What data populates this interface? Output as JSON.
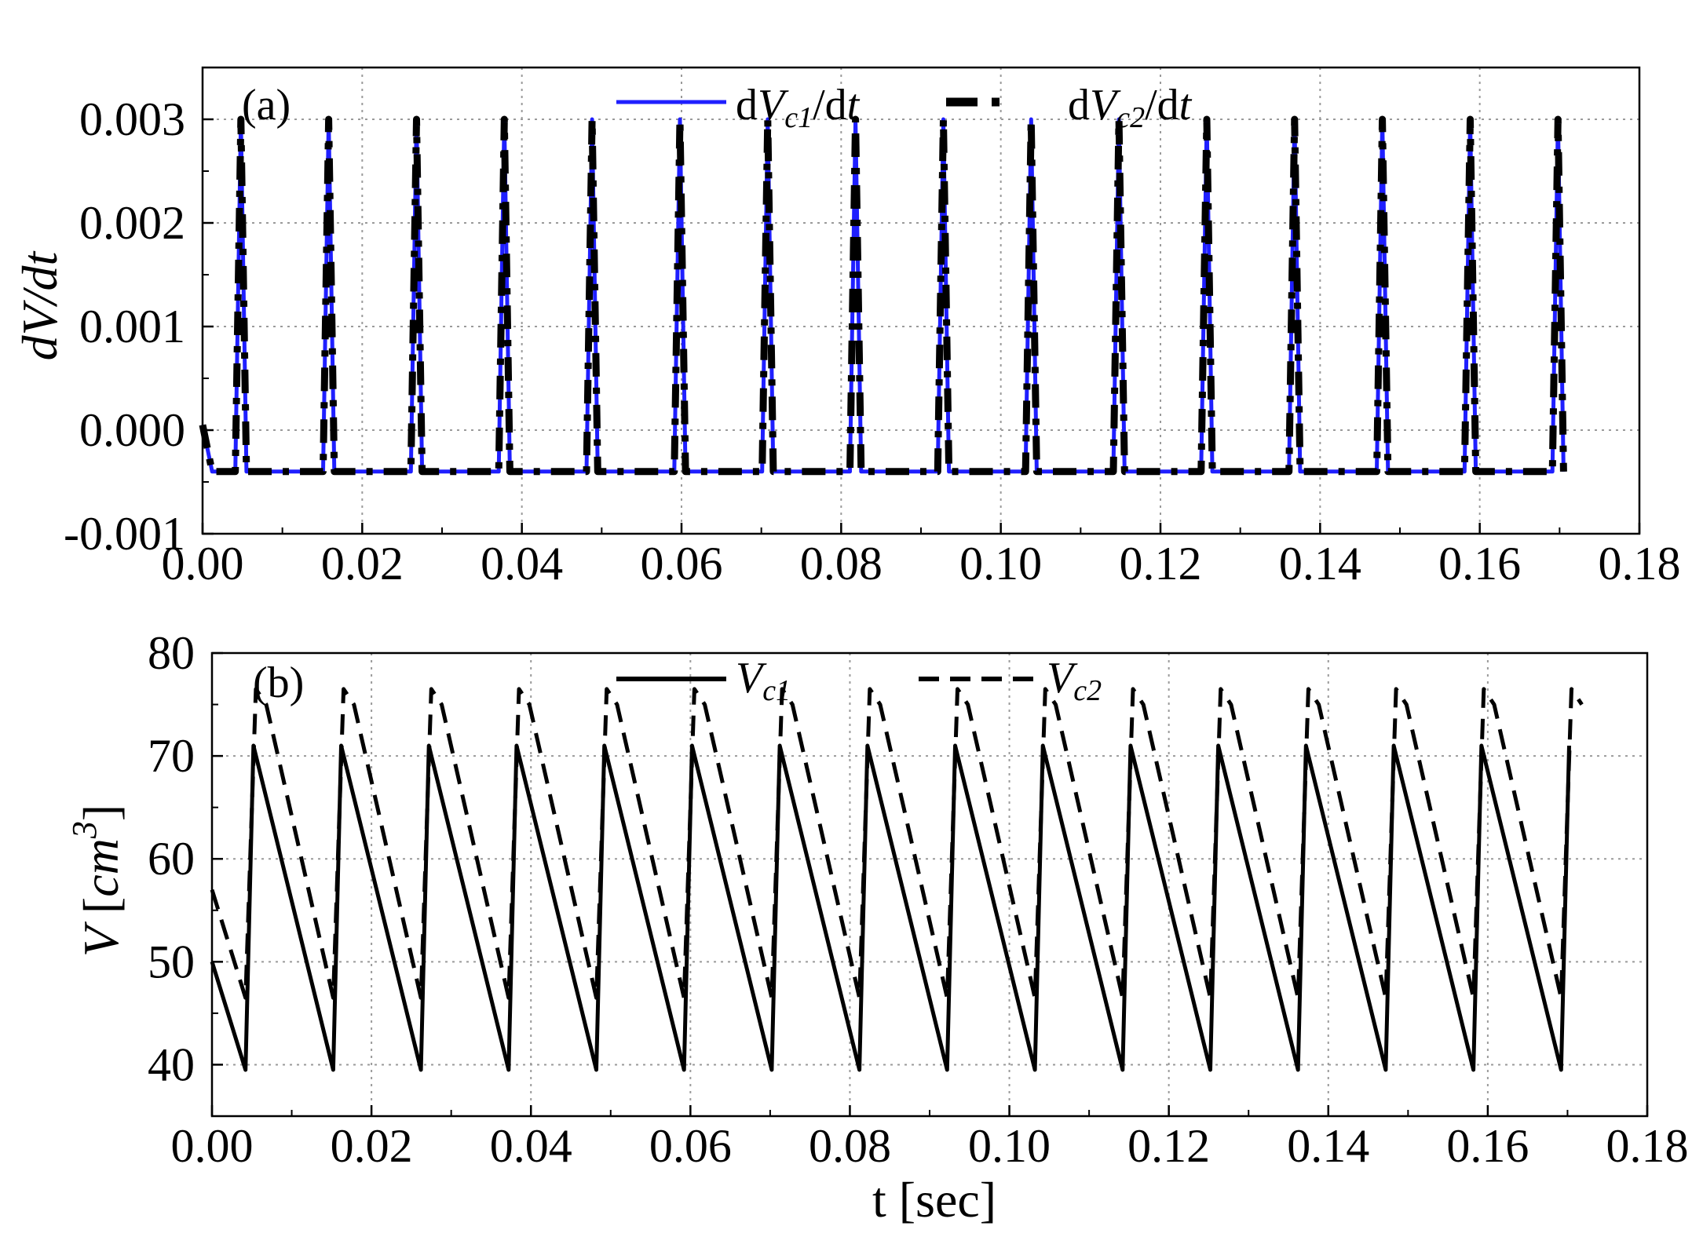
{
  "chart_data": [
    {
      "type": "line",
      "panel_label": "(a)",
      "title": "",
      "xlabel": "",
      "ylabel": "dV/dt",
      "xlim": [
        0,
        0.18
      ],
      "ylim": [
        -0.001,
        0.0035
      ],
      "x_ticks": [
        "0.00",
        "0.02",
        "0.04",
        "0.06",
        "0.08",
        "0.10",
        "0.12",
        "0.14",
        "0.16",
        "0.18"
      ],
      "y_ticks": [
        "-0.001",
        "0.000",
        "0.001",
        "0.002",
        "0.003"
      ],
      "grid": true,
      "legend_position": "top",
      "period": 0.011,
      "series": [
        {
          "name": "dVc1/dt",
          "legend": {
            "pre": "d",
            "italic": "V",
            "sub": "c1",
            "mid": "/d",
            "italic2": "t"
          },
          "color": "#1f1fff",
          "style": "solid",
          "baseline": -0.0004,
          "peak": 0.003,
          "first_peak_t": 0.0048
        },
        {
          "name": "dVc2/dt",
          "legend": {
            "pre": "d",
            "italic": "V",
            "sub": "c2",
            "mid": "/d",
            "italic2": "t"
          },
          "color": "#000000",
          "style": "dash",
          "baseline": -0.0004,
          "peak": 0.003,
          "first_peak_t": 0.0048
        }
      ]
    },
    {
      "type": "line",
      "panel_label": "(b)",
      "title": "",
      "xlabel": "t [sec]",
      "ylabel": "V [cm3]",
      "ylabel_parts": {
        "italic": "V",
        "open": " [",
        "unit": "cm",
        "sup": "3",
        "close": "]"
      },
      "xlim": [
        0,
        0.18
      ],
      "ylim": [
        35,
        80
      ],
      "x_ticks": [
        "0.00",
        "0.02",
        "0.04",
        "0.06",
        "0.08",
        "0.10",
        "0.12",
        "0.14",
        "0.16",
        "0.18"
      ],
      "y_ticks": [
        "40",
        "50",
        "60",
        "70",
        "80"
      ],
      "grid": true,
      "legend_position": "top",
      "period": 0.011,
      "series": [
        {
          "name": "Vc1",
          "legend": {
            "italic": "V",
            "sub": "c1"
          },
          "color": "#000000",
          "style": "solid",
          "start_value": 50,
          "min": 39.5,
          "max": 71,
          "first_min_t": 0.0042,
          "first_max_t": 0.0052
        },
        {
          "name": "Vc2",
          "legend": {
            "italic": "V",
            "sub": "c2"
          },
          "color": "#000000",
          "style": "dash",
          "start_value": 57,
          "min": 46.5,
          "max": 76.5,
          "first_min_t": 0.0042,
          "first_max_t": 0.0055,
          "plateau_end_t": 0.0068
        }
      ]
    }
  ]
}
